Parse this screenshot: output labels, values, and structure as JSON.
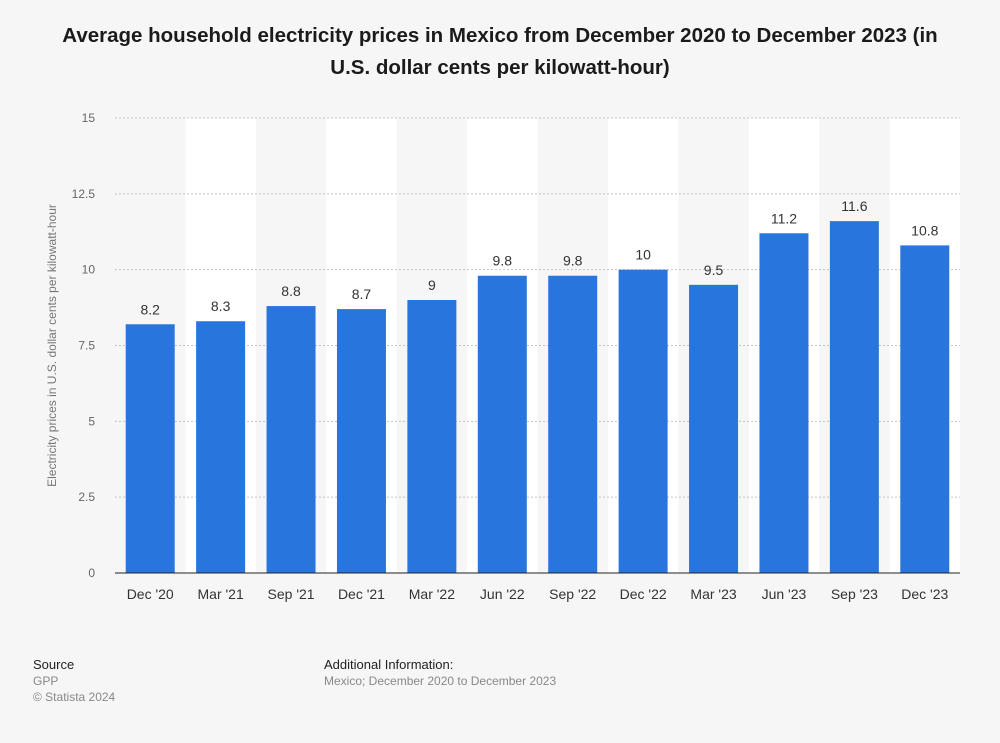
{
  "chart_data": {
    "type": "bar",
    "title": "Average household electricity prices in Mexico from December 2020 to December 2023 (in U.S. dollar cents per kilowatt-hour)",
    "ylabel": "Electricity prices in U.S. dollar cents per kilowatt-hour",
    "xlabel": "",
    "categories": [
      "Dec '20",
      "Mar '21",
      "Sep '21",
      "Dec '21",
      "Mar '22",
      "Jun '22",
      "Sep '22",
      "Dec '22",
      "Mar '23",
      "Jun '23",
      "Sep '23",
      "Dec '23"
    ],
    "values": [
      8.2,
      8.3,
      8.8,
      8.7,
      9,
      9.8,
      9.8,
      10,
      9.5,
      11.2,
      11.6,
      10.8
    ],
    "value_labels": [
      "8.2",
      "8.3",
      "8.8",
      "8.7",
      "9",
      "9.8",
      "9.8",
      "10",
      "9.5",
      "11.2",
      "11.6",
      "10.8"
    ],
    "ylim": [
      0,
      15
    ],
    "yticks": [
      0,
      2.5,
      5,
      7.5,
      10,
      12.5,
      15
    ],
    "ytick_labels": [
      "0",
      "2.5",
      "5",
      "7.5",
      "10",
      "12.5",
      "15"
    ],
    "grid": true,
    "bar_color": "#2876dd"
  },
  "footer": {
    "source_heading": "Source",
    "source_name": "GPP",
    "copyright": "© Statista 2024",
    "additional_heading": "Additional Information:",
    "additional_text": "Mexico; December 2020 to December 2023"
  }
}
